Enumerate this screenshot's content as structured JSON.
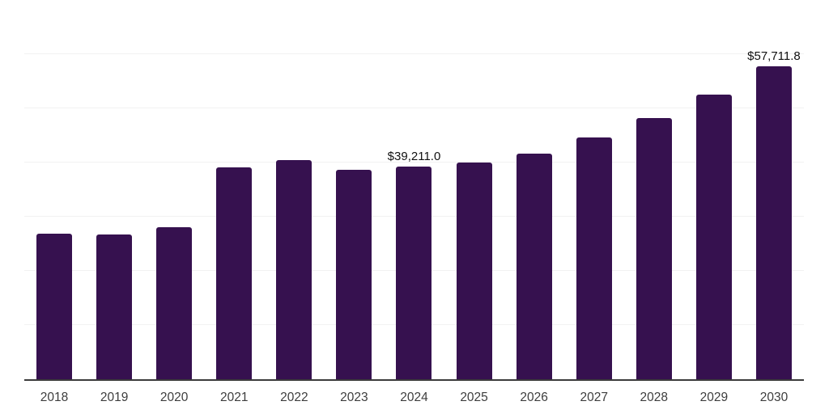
{
  "chart_data": {
    "type": "bar",
    "title": "",
    "xlabel": "",
    "ylabel": "",
    "categories": [
      "2018",
      "2019",
      "2020",
      "2021",
      "2022",
      "2023",
      "2024",
      "2025",
      "2026",
      "2027",
      "2028",
      "2029",
      "2030"
    ],
    "values": [
      26900,
      26700,
      28100,
      39100,
      40500,
      38600,
      39211.0,
      40000,
      41600,
      44600,
      48200,
      52600,
      57711.8
    ],
    "data_labels": [
      {
        "category": "2024",
        "text": "$39,211.0"
      },
      {
        "category": "2030",
        "text": "$57,711.8"
      }
    ],
    "ylim": [
      0,
      70000
    ],
    "grid_step": 10000,
    "grid": true,
    "y_tick_labels_visible": false,
    "legend_position": "none"
  },
  "colors": {
    "bar": "#36114f",
    "axis_line": "#3c3c3c",
    "gridline": "#f2f2f2",
    "x_tick_label": "#3d3d3d",
    "data_label": "#111111",
    "background": "#ffffff"
  }
}
